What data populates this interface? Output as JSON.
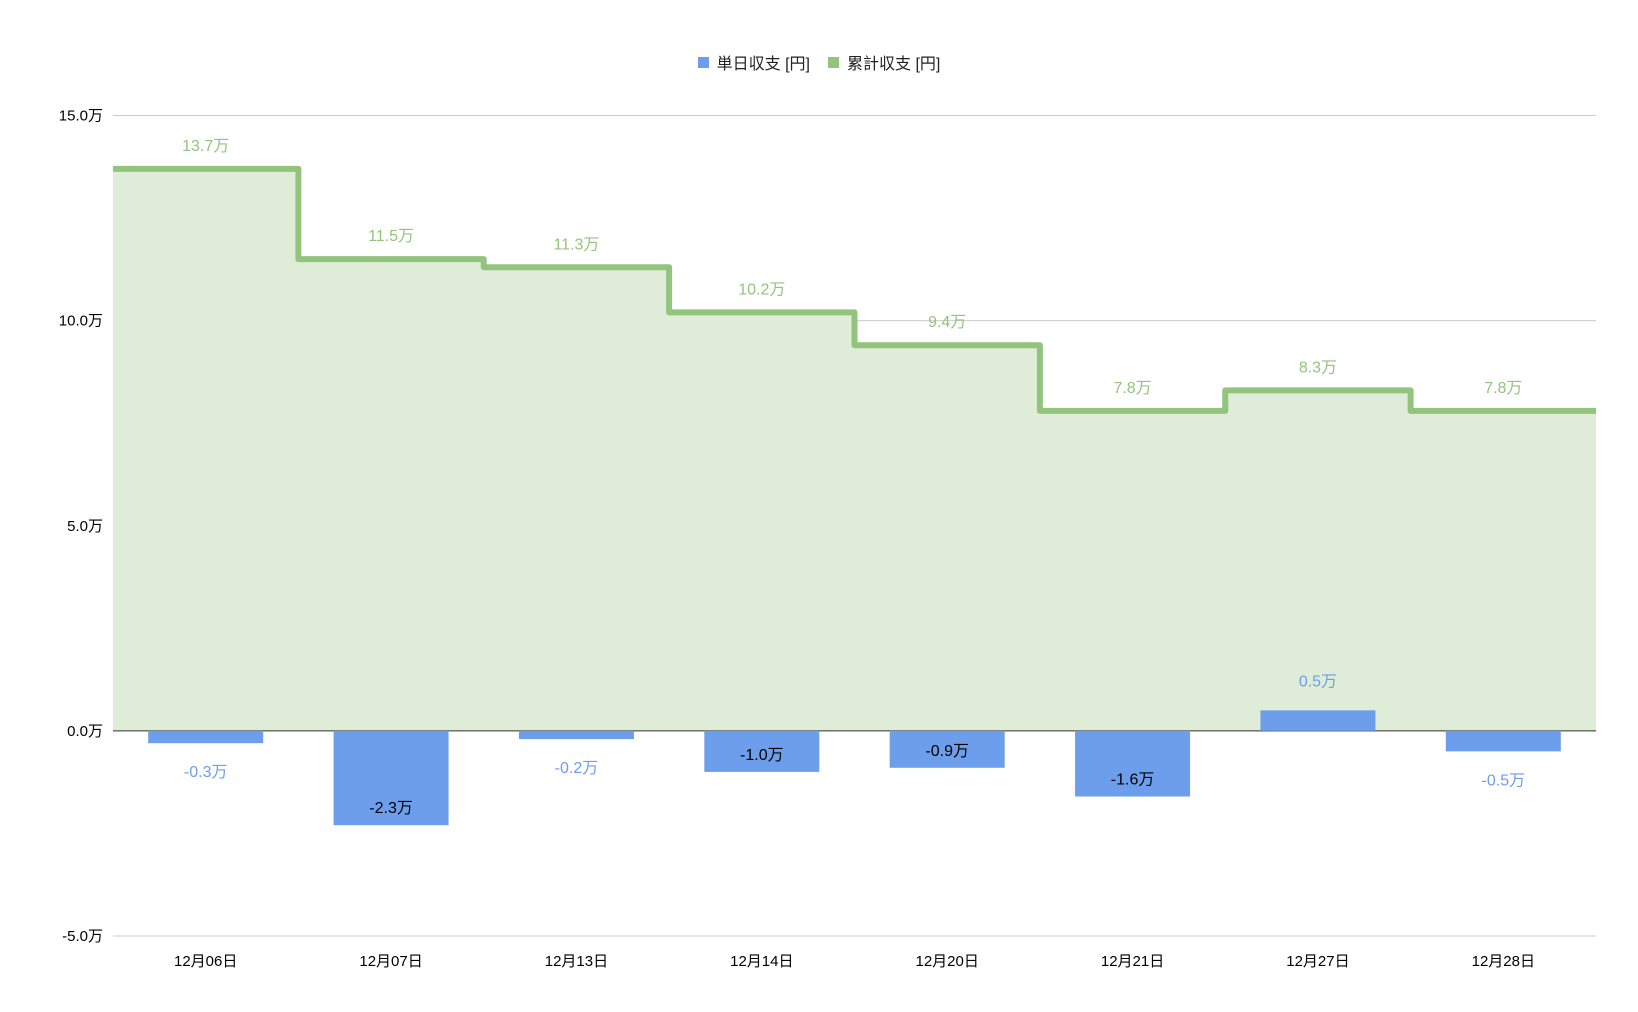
{
  "chart_data": {
    "type": "bar+stepped-area",
    "title": "",
    "categories": [
      "12月06日",
      "12月07日",
      "12月13日",
      "12月14日",
      "12月20日",
      "12月21日",
      "12月27日",
      "12月28日"
    ],
    "series": [
      {
        "name": "単日収支 [円]",
        "type": "bar",
        "color": "#6d9eeb",
        "values": [
          -0.3,
          -2.3,
          -0.2,
          -1.0,
          -0.9,
          -1.6,
          0.5,
          -0.5
        ],
        "labels": [
          "-0.3万",
          "-2.3万",
          "-0.2万",
          "-1.0万",
          "-0.9万",
          "-1.6万",
          "0.5万",
          "-0.5万"
        ]
      },
      {
        "name": "累計収支 [円]",
        "type": "stepped-area",
        "color": "#93c47d",
        "fill": "#dfedd8",
        "values": [
          13.7,
          11.5,
          11.3,
          10.2,
          9.4,
          7.8,
          8.3,
          7.8
        ],
        "labels": [
          "13.7万",
          "11.5万",
          "11.3万",
          "10.2万",
          "9.4万",
          "7.8万",
          "8.3万",
          "7.8万"
        ]
      }
    ],
    "unit": "万",
    "ylim": [
      -5,
      15
    ],
    "yticks": [
      15,
      10,
      5,
      0,
      -5
    ],
    "ytick_labels": [
      "15.0万",
      "10.0万",
      "5.0万",
      "0.0万",
      "-5.0万"
    ],
    "grid": true,
    "legend_position": "top"
  }
}
